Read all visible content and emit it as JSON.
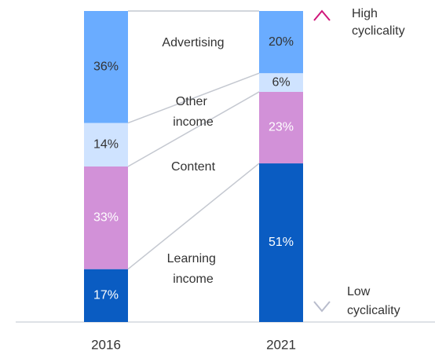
{
  "chart_data": {
    "type": "stacked_bar",
    "categories": [
      "2016",
      "2021"
    ],
    "ylim": [
      0,
      100
    ],
    "series": [
      {
        "name": "Learning income",
        "color": "#0a5cc2",
        "label_color": "#ffffff",
        "values": [
          17,
          51
        ],
        "value_labels": [
          "17%",
          "51%"
        ]
      },
      {
        "name": "Content",
        "color": "#d291d8",
        "label_color": "#ffffff",
        "values": [
          33,
          23
        ],
        "value_labels": [
          "33%",
          "23%"
        ]
      },
      {
        "name": "Other income",
        "color": "#cfe3ff",
        "label_color": "#333333",
        "values": [
          14,
          6
        ],
        "value_labels": [
          "14%",
          "6%"
        ]
      },
      {
        "name": "Advertising",
        "color": "#6aacff",
        "label_color": "#333333",
        "values": [
          36,
          20
        ],
        "value_labels": [
          "36%",
          "20%"
        ]
      }
    ],
    "annotations": [
      "High cyclicality",
      "Low cyclicality"
    ]
  }
}
